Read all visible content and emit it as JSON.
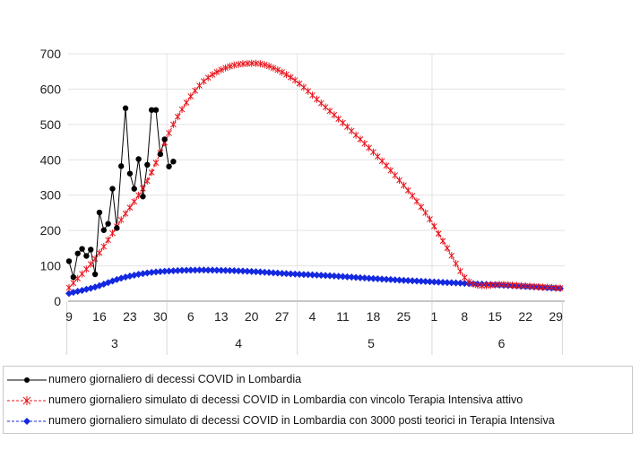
{
  "chart_data": {
    "type": "line",
    "title": "",
    "xlabel": "",
    "ylabel": "",
    "ylim": [
      0,
      700
    ],
    "yticks": [
      0,
      100,
      200,
      300,
      400,
      500,
      600,
      700
    ],
    "xlim": [
      0,
      113
    ],
    "grid": {
      "x": true,
      "y": true
    },
    "legend_position": "bottom",
    "day_ticks": [
      {
        "label": "9",
        "x": 0
      },
      {
        "label": "16",
        "x": 7
      },
      {
        "label": "23",
        "x": 14
      },
      {
        "label": "30",
        "x": 21
      },
      {
        "label": "6",
        "x": 28
      },
      {
        "label": "13",
        "x": 35
      },
      {
        "label": "20",
        "x": 42
      },
      {
        "label": "27",
        "x": 49
      },
      {
        "label": "4",
        "x": 56
      },
      {
        "label": "11",
        "x": 63
      },
      {
        "label": "18",
        "x": 70
      },
      {
        "label": "25",
        "x": 77
      },
      {
        "label": "1",
        "x": 84
      },
      {
        "label": "8",
        "x": 91
      },
      {
        "label": "15",
        "x": 98
      },
      {
        "label": "22",
        "x": 105
      },
      {
        "label": "29",
        "x": 112
      }
    ],
    "month_labels": [
      {
        "label": "3",
        "center": 10.5
      },
      {
        "label": "4",
        "center": 39
      },
      {
        "label": "5",
        "center": 69.5
      },
      {
        "label": "6",
        "center": 99.5
      }
    ],
    "month_boundaries": [
      23,
      53,
      84
    ],
    "series": [
      {
        "name": "numero giornaliero di decessi COVID in Lombardia",
        "color": "#000000",
        "marker": "circle",
        "x": [
          0,
          1,
          2,
          3,
          4,
          5,
          6,
          7,
          8,
          9,
          10,
          11,
          12,
          13,
          14,
          15,
          16,
          17,
          18,
          19,
          20,
          21,
          22,
          23,
          24
        ],
        "values": [
          113,
          68,
          135,
          148,
          128,
          146,
          76,
          251,
          201,
          219,
          318,
          207,
          382,
          546,
          361,
          318,
          402,
          296,
          386,
          541,
          541,
          416,
          458,
          381,
          395
        ]
      },
      {
        "name": "numero giornaliero simulato di decessi COVID in Lombardia con vincolo Terapia Intensiva attivo",
        "color": "#e8141c",
        "marker": "asterisk",
        "keypoints": [
          [
            0,
            38
          ],
          [
            6,
            120
          ],
          [
            12,
            230
          ],
          [
            18,
            340
          ],
          [
            24,
            500
          ],
          [
            30,
            610
          ],
          [
            36,
            660
          ],
          [
            42,
            673
          ],
          [
            46,
            665
          ],
          [
            52,
            625
          ],
          [
            58,
            560
          ],
          [
            66,
            470
          ],
          [
            74,
            370
          ],
          [
            82,
            250
          ],
          [
            87,
            150
          ],
          [
            92,
            55
          ],
          [
            100,
            47
          ],
          [
            113,
            37
          ]
        ]
      },
      {
        "name": "numero giornaliero simulato di decessi COVID in Lombardia con 3000 posti teorici in Terapia Intensiva",
        "color": "#1428e0",
        "marker": "diamond",
        "keypoints": [
          [
            0,
            22
          ],
          [
            6,
            40
          ],
          [
            12,
            65
          ],
          [
            18,
            80
          ],
          [
            24,
            86
          ],
          [
            30,
            88
          ],
          [
            36,
            87
          ],
          [
            42,
            84
          ],
          [
            50,
            78
          ],
          [
            60,
            72
          ],
          [
            70,
            64
          ],
          [
            80,
            57
          ],
          [
            90,
            51
          ],
          [
            100,
            45
          ],
          [
            113,
            36
          ]
        ]
      }
    ]
  }
}
